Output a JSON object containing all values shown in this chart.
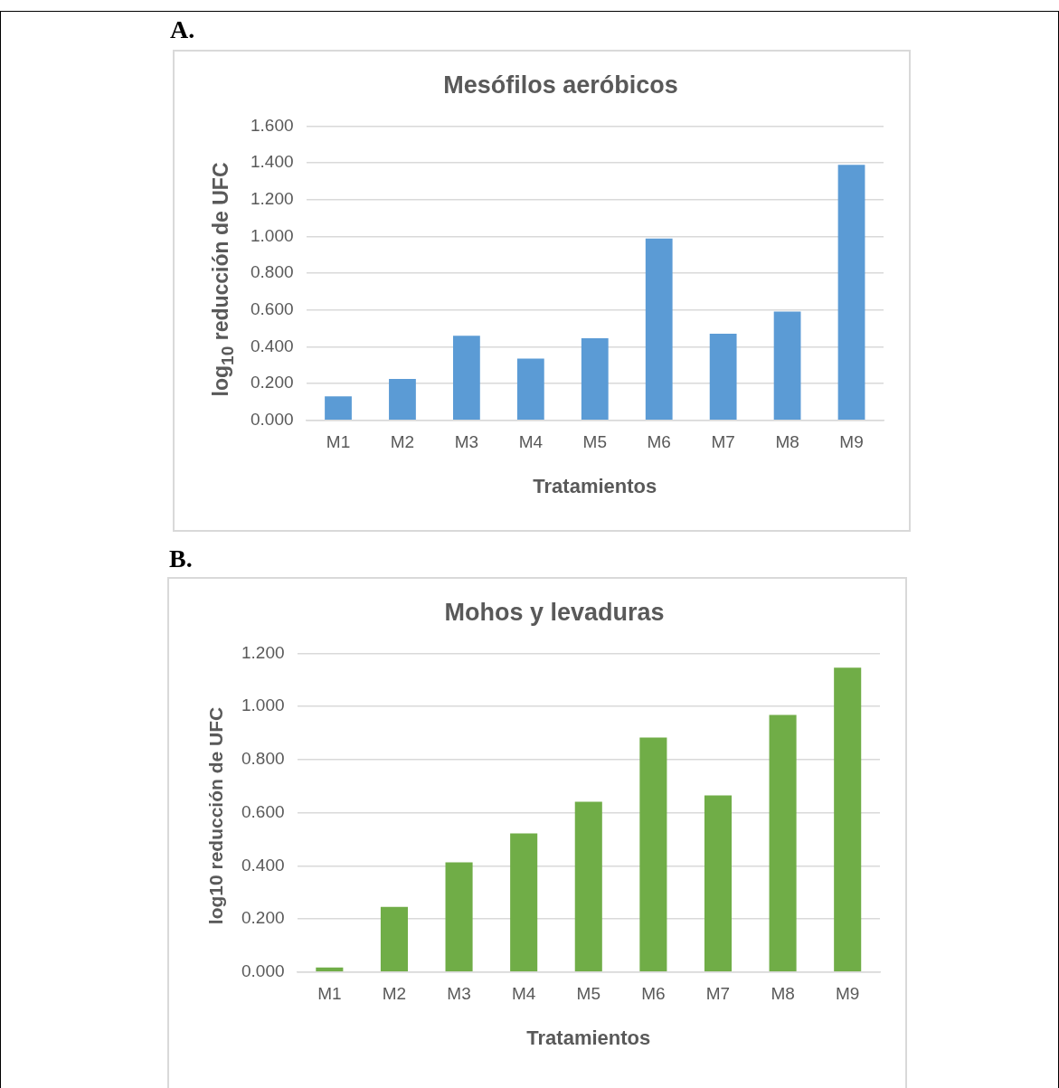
{
  "chart_data": [
    {
      "type": "bar",
      "title": "Mesófilos aeróbicos",
      "xlabel": "Tratamientos",
      "ylabel": "log$_{10}$ reducción de UFC",
      "annotations": [
        "A."
      ],
      "categories": [
        "M1",
        "M2",
        "M3",
        "M4",
        "M5",
        "M6",
        "M7",
        "M8",
        "M9"
      ],
      "values": [
        0.13,
        0.225,
        0.46,
        0.336,
        0.446,
        0.988,
        0.471,
        0.592,
        1.389
      ],
      "color": "#5b9bd5",
      "ylim": [
        0,
        1.6
      ],
      "yticks": [
        {
          "value": 0,
          "label": "0.000"
        },
        {
          "value": 0.2,
          "label": "0.200"
        },
        {
          "value": 0.4,
          "label": "0.400"
        },
        {
          "value": 0.6,
          "label": "0.600"
        },
        {
          "value": 0.8,
          "label": "0.800"
        },
        {
          "value": 1,
          "label": "1.000"
        },
        {
          "value": 1.2,
          "label": "1.200"
        },
        {
          "value": 1.4,
          "label": "1.400"
        },
        {
          "value": 1.6,
          "label": "1.600"
        }
      ],
      "grid": "y"
    },
    {
      "type": "bar",
      "title": "Mohos y levaduras",
      "xlabel": "Tratamientos",
      "ylabel": "log10 reducción de UFC",
      "annotations": [
        "B."
      ],
      "categories": [
        "M1",
        "M2",
        "M3",
        "M4",
        "M5",
        "M6",
        "M7",
        "M8",
        "M9"
      ],
      "values": [
        0.017,
        0.245,
        0.413,
        0.522,
        0.641,
        0.883,
        0.665,
        0.968,
        1.146
      ],
      "color": "#70ad47",
      "ylim": [
        0,
        1.2
      ],
      "yticks": [
        {
          "value": 0,
          "label": "0.000"
        },
        {
          "value": 0.2,
          "label": "0.200"
        },
        {
          "value": 0.4,
          "label": "0.400"
        },
        {
          "value": 0.6,
          "label": "0.600"
        },
        {
          "value": 0.8,
          "label": "0.800"
        },
        {
          "value": 1,
          "label": "1.000"
        },
        {
          "value": 1.2,
          "label": "1.200"
        }
      ],
      "grid": "y"
    }
  ]
}
